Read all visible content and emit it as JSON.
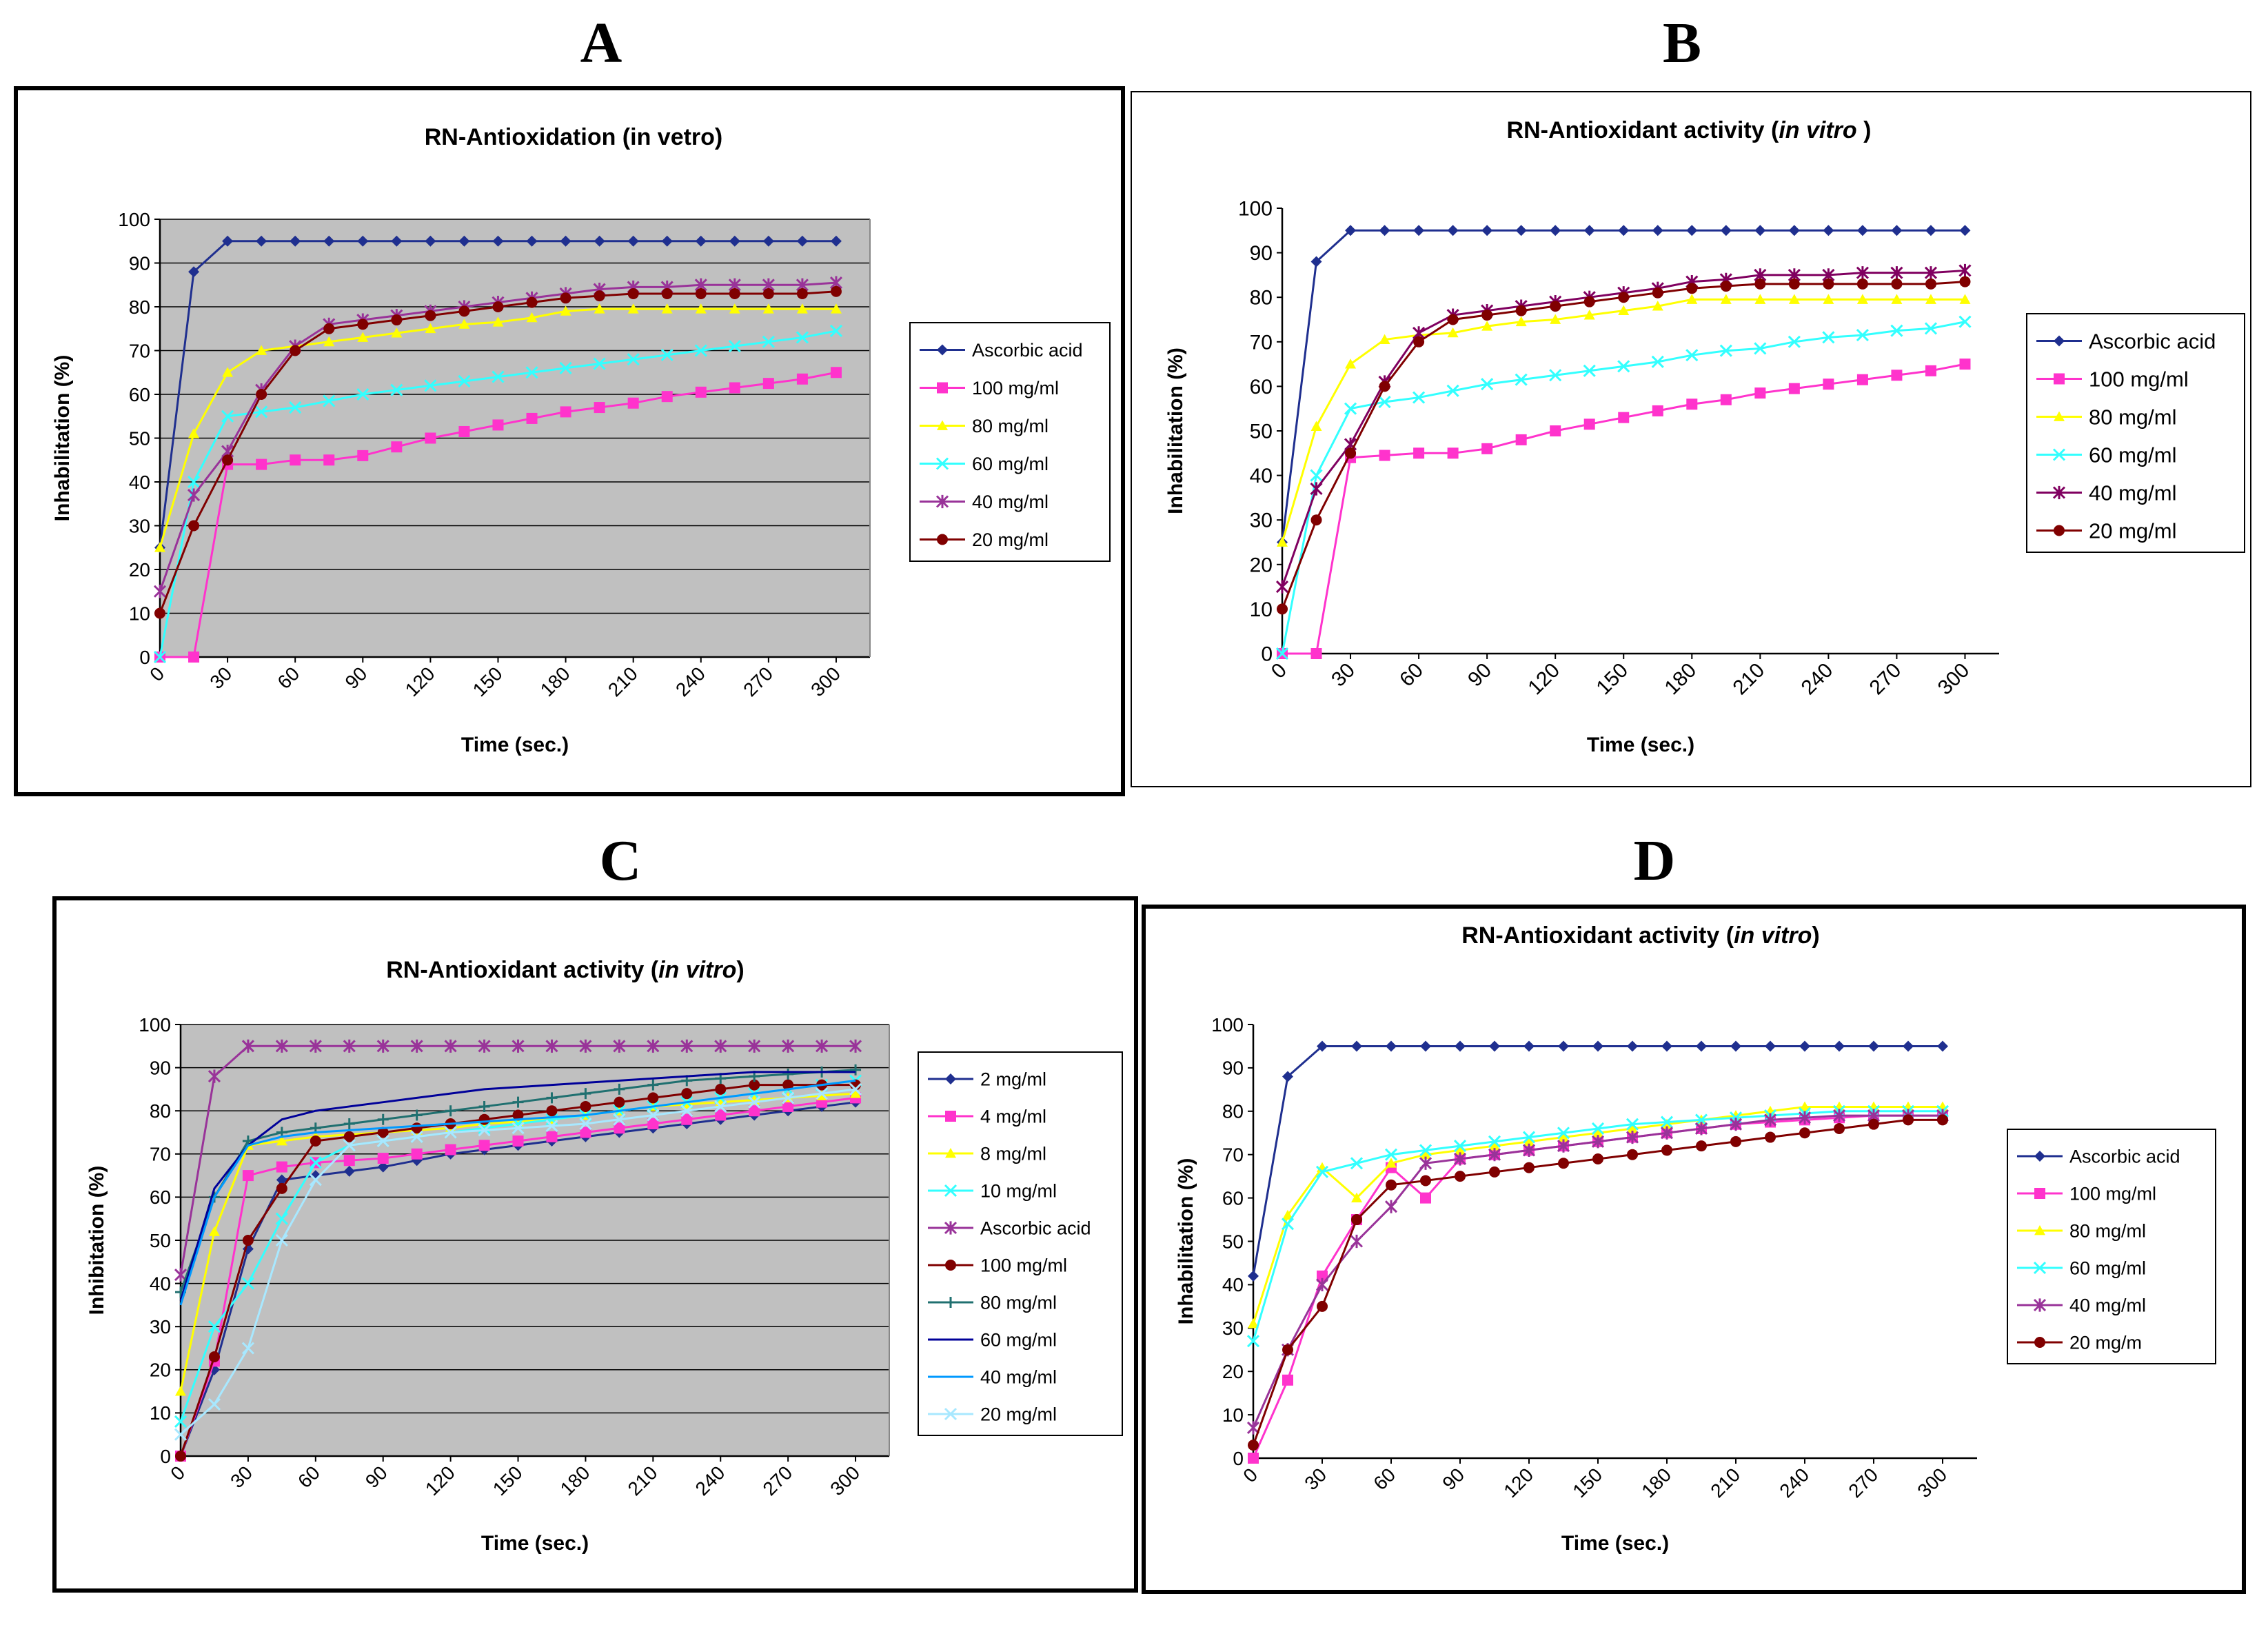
{
  "panels": [
    {
      "letter": "A",
      "chart_data": {
        "type": "line",
        "title": "RN-Antioxidation (in vetro)",
        "xlabel": "Time (sec.)",
        "ylabel": "Inhabilitation (%)",
        "ylim": [
          0,
          100
        ],
        "y_ticks": [
          0,
          10,
          20,
          30,
          40,
          50,
          60,
          70,
          80,
          90,
          100
        ],
        "x_tick_labels": [
          "0",
          "30",
          "60",
          "90",
          "120",
          "150",
          "180",
          "210",
          "240",
          "270",
          "300"
        ],
        "x": [
          0,
          15,
          30,
          45,
          60,
          75,
          90,
          105,
          120,
          135,
          150,
          165,
          180,
          195,
          210,
          225,
          240,
          255,
          270,
          285,
          300
        ],
        "legend_position": "right",
        "series": [
          {
            "name": "Ascorbic acid",
            "color": "#1f2f8f",
            "marker": "diamond",
            "values": [
              25,
              88,
              95,
              95,
              95,
              95,
              95,
              95,
              95,
              95,
              95,
              95,
              95,
              95,
              95,
              95,
              95,
              95,
              95,
              95,
              95
            ]
          },
          {
            "name": "100 mg/ml",
            "color": "#ff33cc",
            "marker": "square",
            "values": [
              0,
              0,
              44,
              44,
              45,
              45,
              46,
              48,
              50,
              51.5,
              53,
              54.5,
              56,
              57,
              58,
              59.5,
              60.5,
              61.5,
              62.5,
              63.5,
              65
            ]
          },
          {
            "name": "80 mg/ml",
            "color": "#ffff00",
            "marker": "triangle",
            "values": [
              25,
              51,
              65,
              70,
              71,
              72,
              73,
              74,
              75,
              76,
              76.5,
              77.5,
              79,
              79.5,
              79.5,
              79.5,
              79.5,
              79.5,
              79.5,
              79.5,
              79.5
            ]
          },
          {
            "name": "60 mg/ml",
            "color": "#33ffff",
            "marker": "x",
            "values": [
              0,
              40,
              55,
              56,
              57,
              58.5,
              60,
              61,
              62,
              63,
              64,
              65,
              66,
              67,
              68,
              69,
              70,
              71,
              72,
              73,
              74.5
            ]
          },
          {
            "name": "40 mg/ml",
            "color": "#993399",
            "marker": "star",
            "values": [
              15,
              37,
              47,
              61,
              71,
              76,
              77,
              78,
              79,
              80,
              81,
              82,
              83,
              84,
              84.5,
              84.5,
              85,
              85,
              85,
              85,
              85.5
            ]
          },
          {
            "name": "20 mg/ml",
            "color": "#800000",
            "marker": "circle",
            "values": [
              10,
              30,
              45,
              60,
              70,
              75,
              76,
              77,
              78,
              79,
              80,
              81,
              82,
              82.5,
              83,
              83,
              83,
              83,
              83,
              83,
              83.5
            ]
          }
        ]
      }
    },
    {
      "letter": "B",
      "chart_data": {
        "type": "line",
        "title": "RN-Antioxidant activity (",
        "title_italic": "in vitro",
        "title_suffix": " )",
        "xlabel": "Time (sec.)",
        "ylabel": "Inhabilitation (%)",
        "ylim": [
          0,
          100
        ],
        "y_ticks": [
          0,
          10,
          20,
          30,
          40,
          50,
          60,
          70,
          80,
          90,
          100
        ],
        "x_tick_labels": [
          "0",
          "30",
          "60",
          "90",
          "120",
          "150",
          "180",
          "210",
          "240",
          "270",
          "300"
        ],
        "x": [
          0,
          15,
          30,
          45,
          60,
          75,
          90,
          105,
          120,
          135,
          150,
          165,
          180,
          195,
          210,
          225,
          240,
          255,
          270,
          285,
          300
        ],
        "legend_position": "right",
        "series": [
          {
            "name": "Ascorbic acid",
            "color": "#1f2f8f",
            "marker": "diamond",
            "values": [
              25,
              88,
              95,
              95,
              95,
              95,
              95,
              95,
              95,
              95,
              95,
              95,
              95,
              95,
              95,
              95,
              95,
              95,
              95,
              95,
              95
            ]
          },
          {
            "name": "100 mg/ml",
            "color": "#ff33cc",
            "marker": "square",
            "values": [
              0,
              0,
              44,
              44.5,
              45,
              45,
              46,
              48,
              50,
              51.5,
              53,
              54.5,
              56,
              57,
              58.5,
              59.5,
              60.5,
              61.5,
              62.5,
              63.5,
              65
            ]
          },
          {
            "name": "80 mg/ml",
            "color": "#ffff00",
            "marker": "triangle",
            "values": [
              25,
              51,
              65,
              70.5,
              71.5,
              72,
              73.5,
              74.5,
              75,
              76,
              77,
              78,
              79.5,
              79.5,
              79.5,
              79.5,
              79.5,
              79.5,
              79.5,
              79.5,
              79.5
            ]
          },
          {
            "name": "60 mg/ml",
            "color": "#33ffff",
            "marker": "x",
            "values": [
              0,
              40,
              55,
              56.5,
              57.5,
              59,
              60.5,
              61.5,
              62.5,
              63.5,
              64.5,
              65.5,
              67,
              68,
              68.5,
              70,
              71,
              71.5,
              72.5,
              73,
              74.5
            ]
          },
          {
            "name": "40 mg/ml",
            "color": "#800060",
            "marker": "star",
            "values": [
              15,
              37,
              47,
              61,
              72,
              76,
              77,
              78,
              79,
              80,
              81,
              82,
              83.5,
              84,
              85,
              85,
              85,
              85.5,
              85.5,
              85.5,
              86
            ]
          },
          {
            "name": "20 mg/ml",
            "color": "#800000",
            "marker": "circle",
            "values": [
              10,
              30,
              45,
              60,
              70,
              75,
              76,
              77,
              78,
              79,
              80,
              81,
              82,
              82.5,
              83,
              83,
              83,
              83,
              83,
              83,
              83.5
            ]
          }
        ]
      }
    },
    {
      "letter": "C",
      "chart_data": {
        "type": "line",
        "title": "RN-Antioxidant activity (",
        "title_italic": "in vitro",
        "title_suffix": ")",
        "xlabel": "Time (sec.)",
        "ylabel": "Inhibitation (%)",
        "ylim": [
          0,
          100
        ],
        "y_ticks": [
          0,
          10,
          20,
          30,
          40,
          50,
          60,
          70,
          80,
          90,
          100
        ],
        "x_tick_labels": [
          "0",
          "30",
          "60",
          "90",
          "120",
          "150",
          "180",
          "210",
          "240",
          "270",
          "300"
        ],
        "x": [
          0,
          15,
          30,
          45,
          60,
          75,
          90,
          105,
          120,
          135,
          150,
          165,
          180,
          195,
          210,
          225,
          240,
          255,
          270,
          285,
          300
        ],
        "legend_position": "right",
        "series": [
          {
            "name": "2 mg/ml",
            "color": "#1f2f8f",
            "marker": "diamond",
            "values": [
              0,
              20,
              48,
              64,
              65,
              66,
              67,
              68.5,
              70,
              71,
              72,
              73,
              74,
              75,
              76,
              77,
              78,
              79,
              80,
              81,
              82
            ]
          },
          {
            "name": "4 mg/ml",
            "color": "#ff33cc",
            "marker": "square",
            "values": [
              0,
              22,
              65,
              67,
              68,
              68.5,
              69,
              70,
              71,
              72,
              73,
              74,
              75,
              76,
              77,
              78,
              79,
              80,
              81,
              82,
              83
            ]
          },
          {
            "name": "8 mg/ml",
            "color": "#ffff00",
            "marker": "triangle",
            "values": [
              15,
              52,
              72,
              73,
              74,
              74.5,
              75,
              75.5,
              76,
              77,
              77.5,
              78,
              79,
              80,
              81,
              81.5,
              82,
              82.5,
              83,
              83.5,
              84
            ]
          },
          {
            "name": "10 mg/ml",
            "color": "#33ffff",
            "marker": "x",
            "values": [
              8,
              30,
              40,
              55,
              68,
              72,
              73,
              74,
              75,
              76,
              77,
              78,
              79,
              80,
              81,
              82,
              83,
              84,
              85,
              86,
              87
            ]
          },
          {
            "name": "Ascorbic acid",
            "color": "#993399",
            "marker": "star",
            "values": [
              42,
              88,
              95,
              95,
              95,
              95,
              95,
              95,
              95,
              95,
              95,
              95,
              95,
              95,
              95,
              95,
              95,
              95,
              95,
              95,
              95
            ]
          },
          {
            "name": "100 mg/ml",
            "color": "#800000",
            "marker": "circle",
            "values": [
              0,
              23,
              50,
              62,
              73,
              74,
              75,
              76,
              77,
              78,
              79,
              80,
              81,
              82,
              83,
              84,
              85,
              86,
              86,
              86,
              86
            ]
          },
          {
            "name": "80 mg/ml",
            "color": "#207070",
            "marker": "plus",
            "values": [
              38,
              60,
              73,
              75,
              76,
              77,
              78,
              79,
              80,
              81,
              82,
              83,
              84,
              85,
              86,
              87,
              87.5,
              88,
              88.5,
              89,
              89.5
            ]
          },
          {
            "name": "60 mg/ml",
            "color": "#000099",
            "marker": "none",
            "values": [
              36,
              62,
              72,
              78,
              80,
              81,
              82,
              83,
              84,
              85,
              85.5,
              86,
              86.5,
              87,
              87.5,
              88,
              88.5,
              89,
              89,
              89,
              89
            ]
          },
          {
            "name": "40 mg/ml",
            "color": "#0099ff",
            "marker": "none",
            "values": [
              35,
              60,
              72,
              74,
              75,
              75.5,
              76,
              76.5,
              77,
              77.5,
              78,
              78.5,
              79,
              80,
              81,
              82,
              83,
              84,
              85,
              86,
              87
            ]
          },
          {
            "name": "20 mg/ml",
            "color": "#a8e8ff",
            "marker": "x",
            "values": [
              5,
              12,
              25,
              50,
              64,
              72,
              73,
              74,
              75,
              75.5,
              76,
              76.5,
              77,
              78,
              79,
              80,
              81,
              82,
              83,
              84,
              85
            ]
          }
        ]
      }
    },
    {
      "letter": "D",
      "chart_data": {
        "type": "line",
        "title": "RN-Antioxidant activity (",
        "title_italic": "in vitro",
        "title_suffix": ")",
        "xlabel": "Time (sec.)",
        "ylabel": "Inhabilitation (%)",
        "ylim": [
          0,
          100
        ],
        "y_ticks": [
          0,
          10,
          20,
          30,
          40,
          50,
          60,
          70,
          80,
          90,
          100
        ],
        "x_tick_labels": [
          "0",
          "30",
          "60",
          "90",
          "120",
          "150",
          "180",
          "210",
          "240",
          "270",
          "300"
        ],
        "x": [
          0,
          15,
          30,
          45,
          60,
          75,
          90,
          105,
          120,
          135,
          150,
          165,
          180,
          195,
          210,
          225,
          240,
          255,
          270,
          285,
          300
        ],
        "legend_position": "right",
        "series": [
          {
            "name": "Ascorbic acid",
            "color": "#1f2f8f",
            "marker": "diamond",
            "values": [
              42,
              88,
              95,
              95,
              95,
              95,
              95,
              95,
              95,
              95,
              95,
              95,
              95,
              95,
              95,
              95,
              95,
              95,
              95,
              95,
              95
            ]
          },
          {
            "name": "100 mg/ml",
            "color": "#ff33cc",
            "marker": "square",
            "values": [
              0,
              18,
              42,
              55,
              67,
              60,
              69,
              70,
              71,
              72,
              73,
              74,
              75,
              76,
              77,
              77.5,
              78,
              78.5,
              79,
              79,
              79
            ]
          },
          {
            "name": "80 mg/ml",
            "color": "#ffff00",
            "marker": "triangle",
            "values": [
              31,
              56,
              67,
              60,
              68,
              70,
              71,
              72,
              73,
              74,
              75,
              76,
              77,
              78,
              79,
              80,
              81,
              81,
              81,
              81,
              81
            ]
          },
          {
            "name": "60 mg/ml",
            "color": "#33ffff",
            "marker": "x",
            "values": [
              27,
              54,
              66,
              68,
              70,
              71,
              72,
              73,
              74,
              75,
              76,
              77,
              77.5,
              78,
              78.5,
              79,
              79.5,
              80,
              80,
              80,
              80
            ]
          },
          {
            "name": "40 mg/ml",
            "color": "#993399",
            "marker": "star",
            "values": [
              7,
              25,
              40,
              50,
              58,
              68,
              69,
              70,
              71,
              72,
              73,
              74,
              75,
              76,
              77,
              78,
              78.5,
              79,
              79,
              79,
              79
            ]
          },
          {
            "name": "20 mg/m",
            "color": "#800000",
            "marker": "circle",
            "values": [
              3,
              25,
              35,
              55,
              63,
              64,
              65,
              66,
              67,
              68,
              69,
              70,
              71,
              72,
              73,
              74,
              75,
              76,
              77,
              78,
              78
            ]
          }
        ]
      }
    }
  ]
}
